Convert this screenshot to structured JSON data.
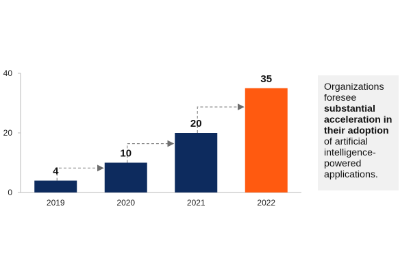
{
  "chart_data": {
    "type": "bar",
    "categories": [
      "2019",
      "2020",
      "2021",
      "2022"
    ],
    "values": [
      4,
      10,
      20,
      35
    ],
    "data_labels": [
      "4",
      "10",
      "20",
      "35"
    ],
    "colors": [
      "#0d2b5e",
      "#0d2b5e",
      "#0d2b5e",
      "#ff5a10"
    ],
    "ylim": [
      0,
      40
    ],
    "yticks": [
      0,
      20,
      40
    ],
    "title": "",
    "xlabel": "",
    "ylabel": "",
    "grid": false,
    "connectors": "dashed arrows between consecutive bars",
    "connector_color": "#8c8c8c"
  },
  "note": {
    "text_before": "Organizations foresee ",
    "text_bold": "substantial acceleration in their adoption",
    "text_after": " of artificial intelligence-powered applications."
  }
}
